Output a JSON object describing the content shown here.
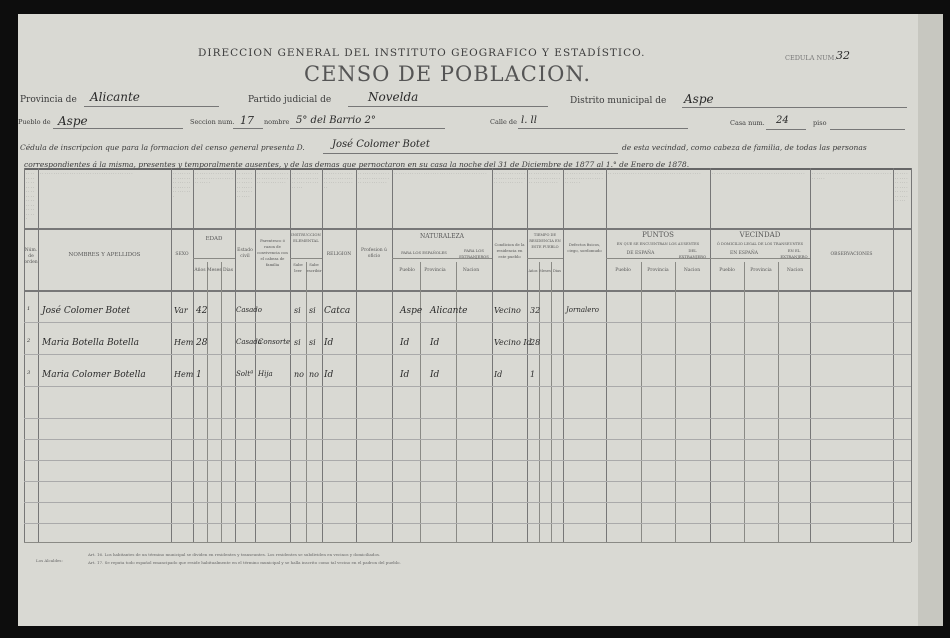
{
  "header": {
    "agency": "DIRECCION GENERAL DEL INSTITUTO GEOGRAFICO Y ESTADÍSTICO.",
    "title": "CENSO DE POBLACION.",
    "cedula_label": "CEDULA NUM.",
    "cedula_value": "32"
  },
  "fields": {
    "provincia_label": "Provincia de",
    "provincia_value": "Alicante",
    "partido_label": "Partido judicial de",
    "partido_value": "Novelda",
    "distrito_label": "Distrito municipal de",
    "distrito_value": "Aspe",
    "pueblo_label": "Pueblo de",
    "pueblo_value": "Aspe",
    "seccion_label": "Seccion num.",
    "seccion_value": "17",
    "nombre_label": "nombre",
    "nombre_value": "5° del Barrio 2°",
    "calle_label": "Calle de",
    "calle_value": "l. ll",
    "casa_label": "Casa num.",
    "casa_value": "24",
    "piso_label": "piso"
  },
  "statement": {
    "part1": "Cédula de inscripcion que para la formacion del censo general presenta D.",
    "head_name": "José Colomer Botet",
    "part2": "de esta vecindad, como cabeza de familia, de todas las personas",
    "line2": "correspondientes á la misma, presentes y temporalmente ausentes, y de las demas que pernoctaron en su casa la noche del 31 de Diciembre de 1877 al 1.° de Enero de 1878."
  },
  "columns": {
    "num": "Núm. de orden",
    "nombres": "NOMBRES Y APELLIDOS",
    "sexo": "SEXO",
    "edad": "EDAD",
    "edad_sub": [
      "Años",
      "Meses",
      "Dias"
    ],
    "estado": "Estado civil",
    "parentesco": "Parentesco ó razon de convivencia con el cabeza de familia",
    "instruccion": "INSTRUCCION ELEMENTAL",
    "instruccion_sub": [
      "Sabe leer",
      "Sabe escribir"
    ],
    "religion": "RELIGION",
    "profesion": "Profesion ú oficio",
    "naturaleza": "NATURALEZA",
    "para_espanoles": "PARA LOS ESPAÑOLES",
    "para_extranjeros": "PARA LOS EXTRANJEROS",
    "naturaleza_sub": [
      "Pueblo",
      "Provincia",
      "Nacion"
    ],
    "residencia": "Condicion de la residencia en este pueblo",
    "tiempo": "TIEMPO DE RESIDENCIA EN ESTE PUEBLO",
    "tiempo_sub": [
      "Años",
      "Meses",
      "Dias"
    ],
    "defectos": "Defectos fisicos, ciego, sordomudo",
    "puntos": "PUNTOS",
    "puntos_sub": "EN QUE SE ENCUENTRAN LOS AUSENTES",
    "de_espana": "DE ESPAÑA",
    "del_extranjero": "DEL EXTRANJERO",
    "puntos_cols": [
      "Pueblo",
      "Provincia",
      "Nacion"
    ],
    "vecindad": "VECINDAD",
    "vecindad_sub": "Ó DOMICILIO LEGAL DE LOS TRANSEUNTES",
    "en_espana": "EN ESPAÑA",
    "en_extranjero": "EN EL EXTRANJERO",
    "vecindad_cols": [
      "Pueblo",
      "Provincia",
      "Nacion"
    ],
    "observaciones": "OBSERVACIONES"
  },
  "rows": [
    {
      "num": "1",
      "name": "José Colomer Botet",
      "sexo": "Var",
      "edad": "42",
      "estado": "Casado",
      "parentesco": "",
      "leer": "si",
      "escribir": "si",
      "religion": "Catca",
      "pueblo": "Aspe",
      "provincia": "Alicante",
      "residencia": "Vecino",
      "tiempo": "32",
      "defectos": "Jornalero"
    },
    {
      "num": "2",
      "name": "Maria Botella Botella",
      "sexo": "Hem",
      "edad": "28",
      "estado": "Casada",
      "parentesco": "Consorte",
      "leer": "si",
      "escribir": "si",
      "religion": "Id",
      "pueblo": "Id",
      "provincia": "Id",
      "residencia": "Vecino Id",
      "tiempo": "28",
      "defectos": ""
    },
    {
      "num": "3",
      "name": "Maria Colomer Botella",
      "sexo": "Hem",
      "edad": "1",
      "estado": "Soltª",
      "parentesco": "Hija",
      "leer": "no",
      "escribir": "no",
      "religion": "Id",
      "pueblo": "Id",
      "provincia": "Id",
      "residencia": "Id",
      "tiempo": "1",
      "defectos": ""
    }
  ],
  "footer": {
    "note_label": "Los Alcaldes:",
    "art16": "Art. 16. Los habitantes de un término municipal se dividen en residentes y transeuntes. Los residentes se subdividen en vecinos y domiciliados.",
    "art17": "Art. 17. Se reputa todo español emancipado que reside habitualmente en el término municipal y se halla inscrito como tal vecino en el padron del pueblo."
  }
}
